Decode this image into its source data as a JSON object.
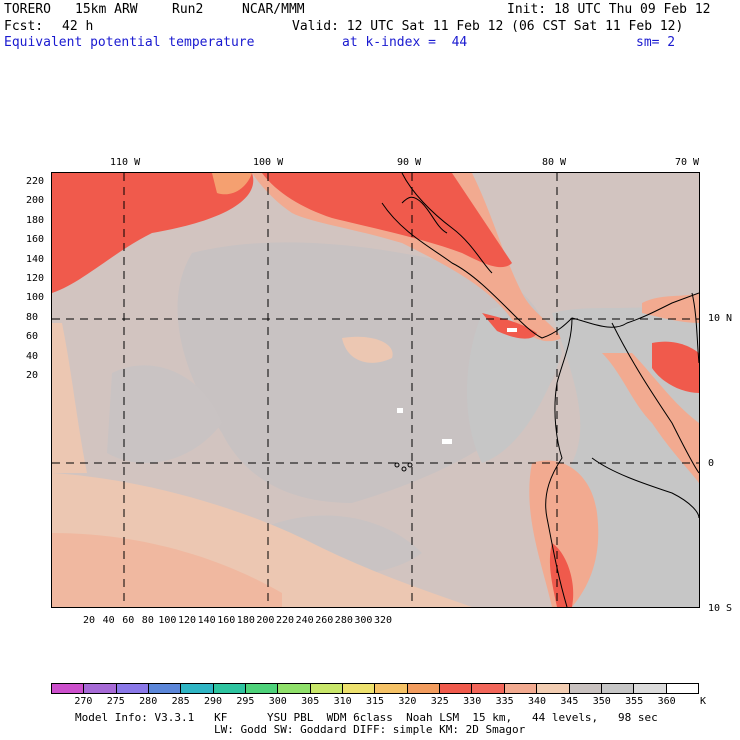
{
  "header": {
    "model": "TORERO",
    "resolution": "15km ARW",
    "run": "Run2",
    "org": "NCAR/MMM",
    "init": "Init: 18 UTC Thu 09 Feb 12",
    "fcst_label": "Fcst:",
    "fcst_value": "42 h",
    "valid": "Valid: 12 UTC Sat 11 Feb 12 (06 CST Sat 11 Feb 12)",
    "field": "Equivalent potential temperature",
    "level": "at k-index =  44",
    "smoothing": "sm= 2"
  },
  "map": {
    "top_lon_labels": [
      "110 W",
      "100 W",
      "90 W",
      "80 W",
      "70 W"
    ],
    "right_lat_labels": [
      "10 N",
      "0",
      "10 S"
    ],
    "left_grid_labels": [
      "220",
      "200",
      "180",
      "160",
      "140",
      "120",
      "100",
      "80",
      "60",
      "40",
      "20"
    ],
    "bottom_grid_labels": [
      "20",
      "40",
      "60",
      "80",
      "100",
      "120",
      "140",
      "160",
      "180",
      "200",
      "220",
      "240",
      "260",
      "280",
      "300",
      "320"
    ]
  },
  "colorbar": {
    "labels": [
      "270",
      "275",
      "280",
      "285",
      "290",
      "295",
      "300",
      "305",
      "310",
      "315",
      "320",
      "325",
      "330",
      "335",
      "340",
      "345",
      "350",
      "355",
      "360"
    ],
    "unit": "K",
    "colors": [
      "#cc4fcc",
      "#a66ad6",
      "#8a78e8",
      "#5b86d9",
      "#2fb5c4",
      "#2ec4a0",
      "#4ed27a",
      "#8fe06a",
      "#c8e66a",
      "#ede16e",
      "#f5c266",
      "#f29c5e",
      "#f05a4c",
      "#f2665a",
      "#f2aa90",
      "#f2cdb2",
      "#c9c2c0",
      "#c6c6c6",
      "#dcdcdc",
      "#ffffff"
    ]
  },
  "footer": {
    "line1": "Model Info: V3.3.1   KF      YSU PBL  WDM 6class  Noah LSM  15 km,   44 levels,   98 sec",
    "line2": "LW: Godd SW: Goddard DIFF: simple KM: 2D Smagor"
  }
}
